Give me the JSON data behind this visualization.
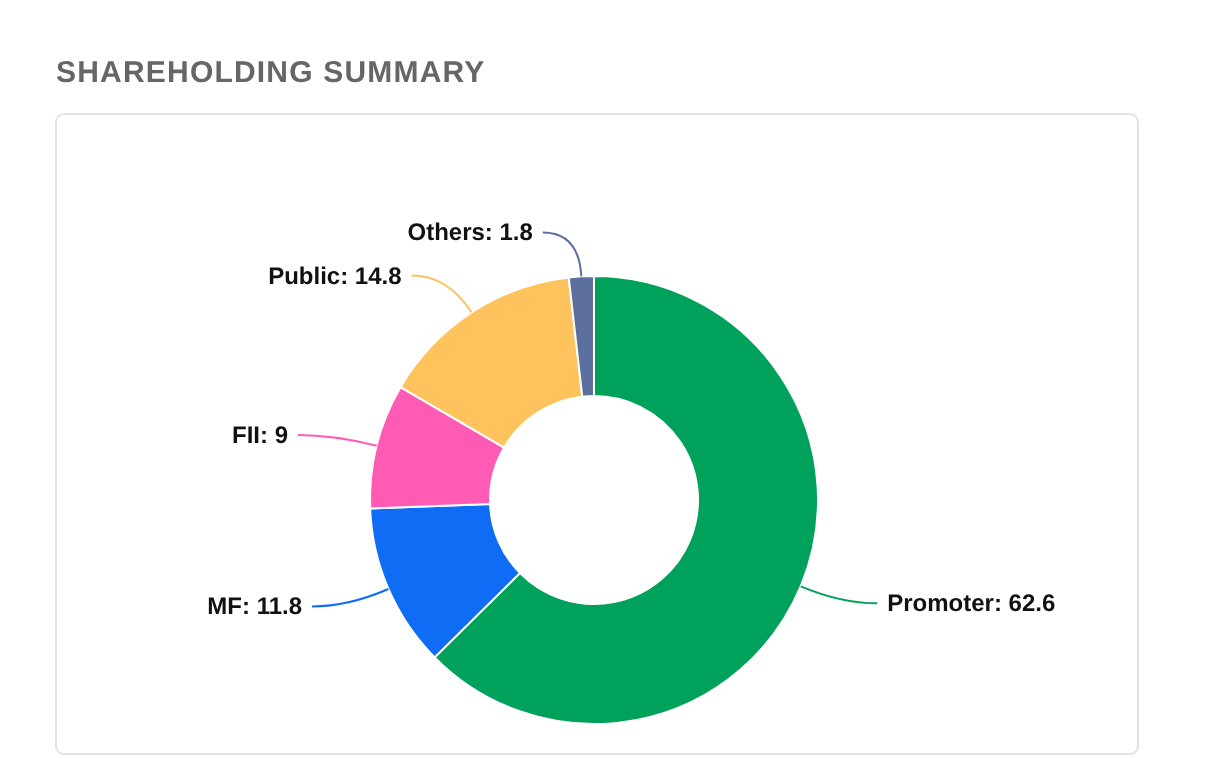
{
  "chart_data": {
    "type": "donut",
    "title": "SHAREHOLDING SUMMARY",
    "categories": [
      "Promoter",
      "MF",
      "FII",
      "Public",
      "Others"
    ],
    "values": [
      62.6,
      11.8,
      9,
      14.8,
      1.8
    ],
    "colors": [
      "#00a25b",
      "#0f6cf5",
      "#ff5bb5",
      "#ffc35e",
      "#5c6f9e"
    ],
    "value_labels": [
      ": 62.6",
      ": 11.8",
      ": 9",
      ": 14.8",
      ": 1.8"
    ]
  }
}
